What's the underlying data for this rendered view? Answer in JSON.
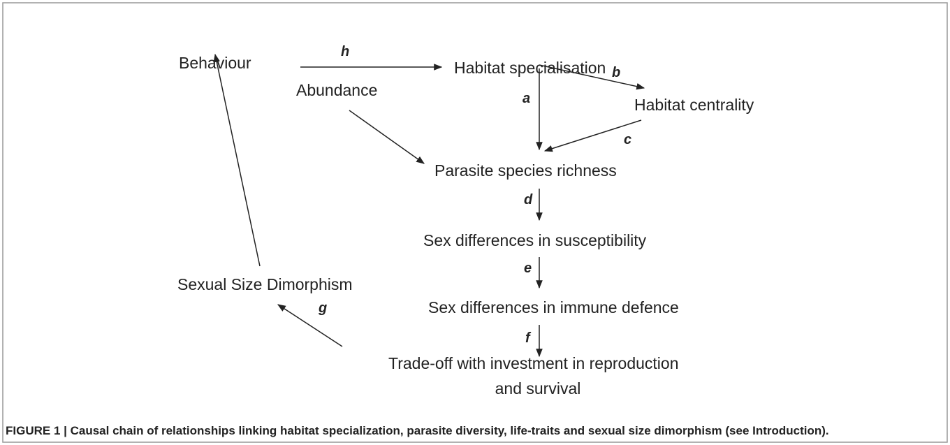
{
  "nodes": [
    {
      "label": "Behaviour"
    },
    {
      "label": "Habitat specialisation"
    },
    {
      "label": "Abundance"
    },
    {
      "label": "Habitat centrality"
    },
    {
      "label": "Parasite species richness"
    },
    {
      "label": "Sex differences in susceptibility"
    },
    {
      "label": "Sexual Size Dimorphism"
    },
    {
      "label": "Sex differences in immune defence"
    },
    {
      "label": "Trade-off with investment in reproduction"
    },
    {
      "label": "and survival"
    }
  ],
  "edges": [
    {
      "label": "h"
    },
    {
      "label": "b"
    },
    {
      "label": "a"
    },
    {
      "label": "c"
    },
    {
      "label": "d"
    },
    {
      "label": "e"
    },
    {
      "label": "f"
    },
    {
      "label": "g"
    }
  ],
  "caption": "FIGURE 1 | Causal chain of relationships linking habitat specialization, parasite diversity, life-traits and sexual size dimorphism (see Introduction)."
}
